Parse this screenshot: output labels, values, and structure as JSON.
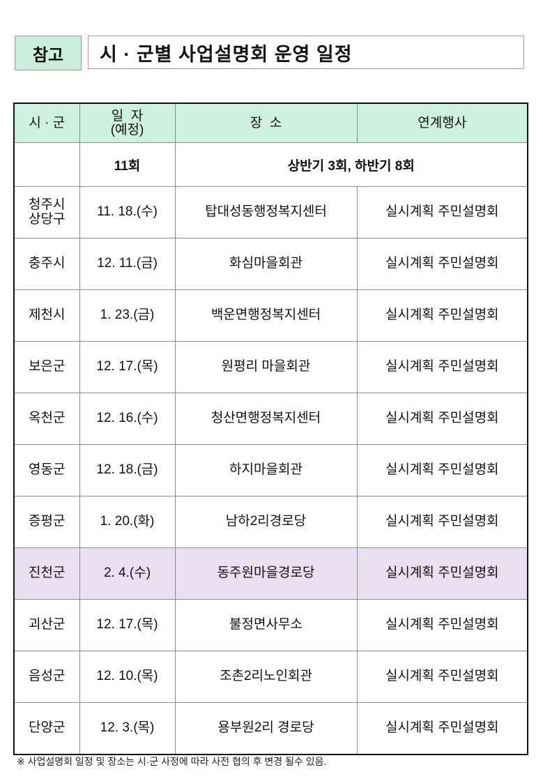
{
  "header": {
    "tag": "참고",
    "title": "시 · 군별 사업설명회 운영 일정"
  },
  "table": {
    "columns": [
      "시 · 군",
      "일  자\n(예정)",
      "장  소",
      "연계행사"
    ],
    "col_date_line1": "일  자",
    "col_date_line2": "(예정)",
    "summary": {
      "count": "11회",
      "detail": "상반기 3회, 하반기 8회"
    },
    "rows": [
      {
        "city": "청주시\n상당구",
        "city_l1": "청주시",
        "city_l2": "상당구",
        "date": "11. 18.(수)",
        "place": "탑대성동행정복지센터",
        "event": "실시계획 주민설명회"
      },
      {
        "city": "충주시",
        "date": "12. 11.(금)",
        "place": "화심마을회관",
        "event": "실시계획 주민설명회"
      },
      {
        "city": "제천시",
        "date": "1. 23.(금)",
        "place": "백운면행정복지센터",
        "event": "실시계획 주민설명회"
      },
      {
        "city": "보은군",
        "date": "12. 17.(목)",
        "place": "원평리 마을회관",
        "event": "실시계획 주민설명회"
      },
      {
        "city": "옥천군",
        "date": "12. 16.(수)",
        "place": "청산면행정복지센터",
        "event": "실시계획 주민설명회"
      },
      {
        "city": "영동군",
        "date": "12. 18.(금)",
        "place": "하지마을회관",
        "event": "실시계획 주민설명회"
      },
      {
        "city": "증평군",
        "date": "1. 20.(화)",
        "place": "남하2리경로당",
        "event": "실시계획 주민설명회"
      },
      {
        "city": "진천군",
        "date": "2. 4.(수)",
        "place": "동주원마을경로당",
        "event": "실시계획 주민설명회",
        "highlighted": true
      },
      {
        "city": "괴산군",
        "date": "12. 17.(목)",
        "place": "불정면사무소",
        "event": "실시계획 주민설명회"
      },
      {
        "city": "음성군",
        "date": "12. 10.(목)",
        "place": "조촌2리노인회관",
        "event": "실시계획 주민설명회"
      },
      {
        "city": "단양군",
        "date": "12. 3.(목)",
        "place": "용부원2리 경로당",
        "event": "실시계획 주민설명회"
      }
    ]
  },
  "footnote": "※ 사업설명회 일정 및 장소는 시·군 사정에 따라 사전 협의 후 변경 될수 있음.",
  "colors": {
    "header_bg": "#cdf0e2",
    "highlight_bg": "#e8e0f1"
  }
}
